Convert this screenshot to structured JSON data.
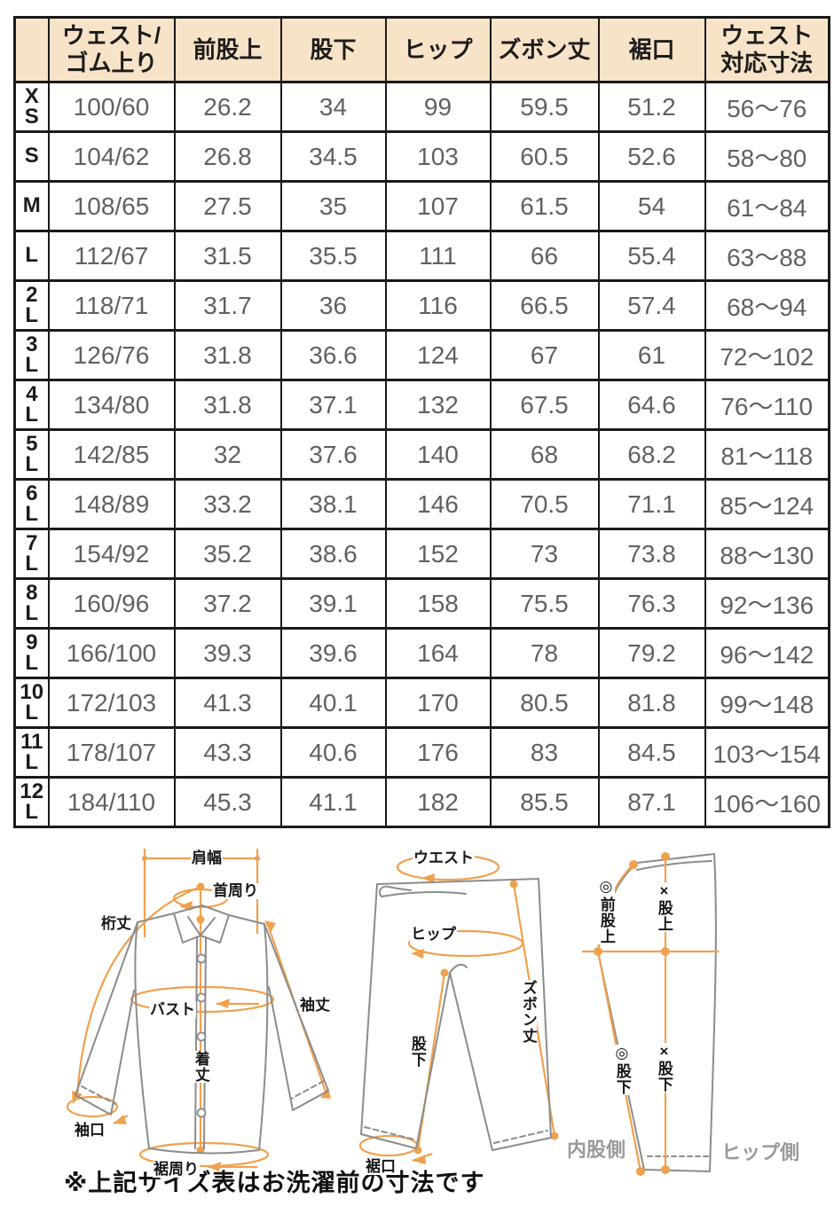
{
  "table": {
    "corner": "",
    "columns": [
      {
        "line1": "ウェスト/",
        "line2": "ゴム上り"
      },
      {
        "line1": "前股上",
        "line2": ""
      },
      {
        "line1": "股下",
        "line2": ""
      },
      {
        "line1": "ヒップ",
        "line2": ""
      },
      {
        "line1": "ズボン丈",
        "line2": ""
      },
      {
        "line1": "裾口",
        "line2": ""
      },
      {
        "line1": "ウェスト",
        "line2": "対応寸法"
      }
    ],
    "rows": [
      {
        "size": "X\nS",
        "values": [
          "100/60",
          "26.2",
          "34",
          "99",
          "59.5",
          "51.2",
          "56〜76"
        ]
      },
      {
        "size": "S",
        "values": [
          "104/62",
          "26.8",
          "34.5",
          "103",
          "60.5",
          "52.6",
          "58〜80"
        ]
      },
      {
        "size": "M",
        "values": [
          "108/65",
          "27.5",
          "35",
          "107",
          "61.5",
          "54",
          "61〜84"
        ]
      },
      {
        "size": "L",
        "values": [
          "112/67",
          "31.5",
          "35.5",
          "111",
          "66",
          "55.4",
          "63〜88"
        ]
      },
      {
        "size": "2\nL",
        "values": [
          "118/71",
          "31.7",
          "36",
          "116",
          "66.5",
          "57.4",
          "68〜94"
        ]
      },
      {
        "size": "3\nL",
        "values": [
          "126/76",
          "31.8",
          "36.6",
          "124",
          "67",
          "61",
          "72〜102"
        ]
      },
      {
        "size": "4\nL",
        "values": [
          "134/80",
          "31.8",
          "37.1",
          "132",
          "67.5",
          "64.6",
          "76〜110"
        ]
      },
      {
        "size": "5\nL",
        "values": [
          "142/85",
          "32",
          "37.6",
          "140",
          "68",
          "68.2",
          "81〜118"
        ]
      },
      {
        "size": "6\nL",
        "values": [
          "148/89",
          "33.2",
          "38.1",
          "146",
          "70.5",
          "71.1",
          "85〜124"
        ]
      },
      {
        "size": "7\nL",
        "values": [
          "154/92",
          "35.2",
          "38.6",
          "152",
          "73",
          "73.8",
          "88〜130"
        ]
      },
      {
        "size": "8\nL",
        "values": [
          "160/96",
          "37.2",
          "39.1",
          "158",
          "75.5",
          "76.3",
          "92〜136"
        ]
      },
      {
        "size": "9\nL",
        "values": [
          "166/100",
          "39.3",
          "39.6",
          "164",
          "78",
          "79.2",
          "96〜142"
        ]
      },
      {
        "size": "10\nL",
        "values": [
          "172/103",
          "41.3",
          "40.1",
          "170",
          "80.5",
          "81.8",
          "99〜148"
        ]
      },
      {
        "size": "11\nL",
        "values": [
          "178/107",
          "43.3",
          "40.6",
          "176",
          "83",
          "84.5",
          "103〜154"
        ]
      },
      {
        "size": "12\nL",
        "values": [
          "184/110",
          "45.3",
          "41.1",
          "182",
          "85.5",
          "87.1",
          "106〜160"
        ]
      }
    ]
  },
  "diagrams": {
    "shirt": {
      "shoulder": "肩幅",
      "neck": "首周り",
      "yuki": "桁丈",
      "bust": "バスト",
      "length": "着丈",
      "sleeve": "袖丈",
      "cuff": "袖口",
      "hem": "裾周り"
    },
    "pants_front": {
      "waist": "ウエスト",
      "hip": "ヒップ",
      "length": "ズボン丈",
      "inseam": "股下",
      "hem": "裾口"
    },
    "pants_side": {
      "front_rise": "◎前股上",
      "rise_ng": "×股上",
      "inseam_ok": "◎股下",
      "inseam_ng": "×股下",
      "inner_side": "内股側",
      "hip_side": "ヒップ側"
    }
  },
  "note": "※上記サイズ表はお洗濯前の寸法です",
  "colors": {
    "header_bg": "#F7E3C7",
    "accent_orange": "#F0A14E",
    "outline_gray": "#8C8C8C",
    "value_text": "#616161",
    "border": "#1A1A1A"
  }
}
